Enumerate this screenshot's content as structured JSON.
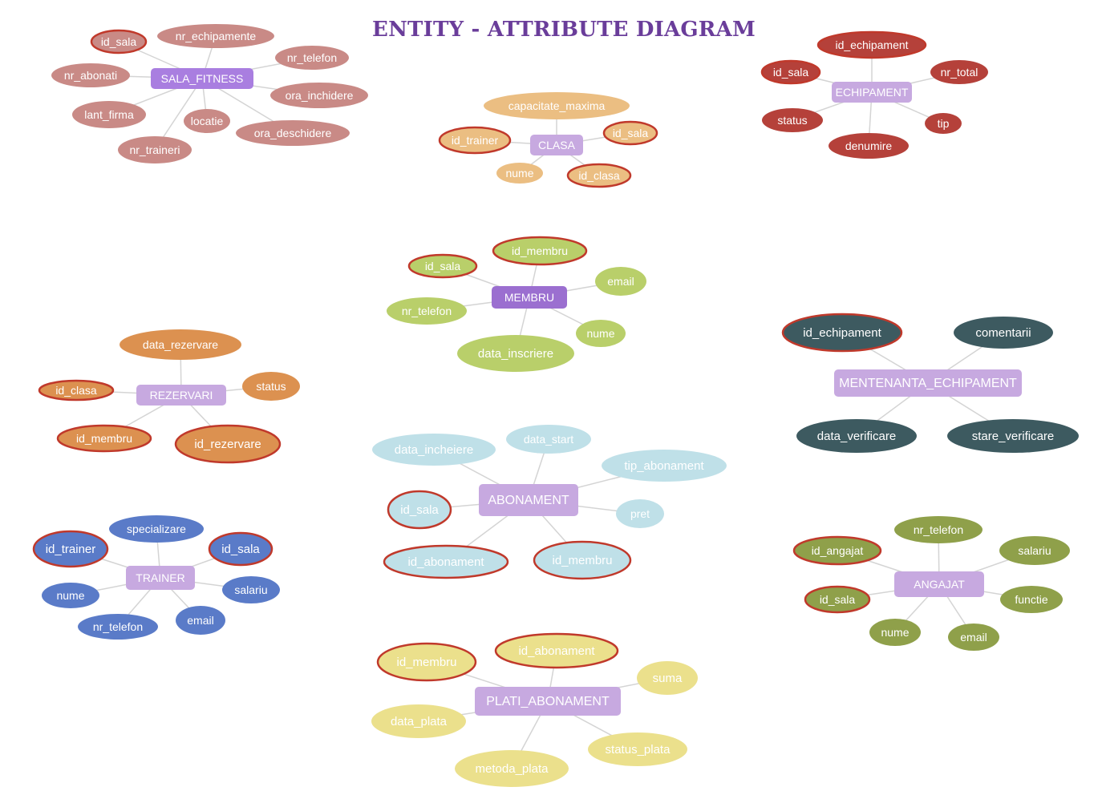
{
  "title": "ENTITY - ATTRIBUTE DIAGRAM",
  "colors": {
    "edge": "#d4d4d4",
    "key_border": "#c0392b",
    "entity_light": "#c7a9e0",
    "entity_dark": "#9b6fd0"
  },
  "entities": [
    {
      "name": "SALA_FITNESS",
      "fill": "#a97ee0",
      "attr_fill": "#c98a86",
      "attr_text": "#ffffff",
      "attributes": [
        {
          "label": "id_sala",
          "key": true
        },
        {
          "label": "nr_echipamente",
          "key": false
        },
        {
          "label": "nr_telefon",
          "key": false
        },
        {
          "label": "nr_abonati",
          "key": false
        },
        {
          "label": "ora_inchidere",
          "key": false
        },
        {
          "label": "lant_firma",
          "key": false
        },
        {
          "label": "locatie",
          "key": false
        },
        {
          "label": "ora_deschidere",
          "key": false
        },
        {
          "label": "nr_traineri",
          "key": false
        }
      ]
    },
    {
      "name": "CLASA",
      "fill": "#c7a9e0",
      "attr_fill": "#ebbe82",
      "attr_text": "#ffffff",
      "attributes": [
        {
          "label": "capacitate_maxima",
          "key": false
        },
        {
          "label": "id_trainer",
          "key": true
        },
        {
          "label": "id_sala",
          "key": true
        },
        {
          "label": "nume",
          "key": false
        },
        {
          "label": "id_clasa",
          "key": true
        }
      ]
    },
    {
      "name": "ECHIPAMENT",
      "fill": "#c7a9e0",
      "attr_fill": "#b5413a",
      "attr_text": "#ffffff",
      "attributes": [
        {
          "label": "id_echipament",
          "key": true
        },
        {
          "label": "id_sala",
          "key": true
        },
        {
          "label": "nr_total",
          "key": false
        },
        {
          "label": "status",
          "key": false
        },
        {
          "label": "tip",
          "key": false
        },
        {
          "label": "denumire",
          "key": false
        }
      ]
    },
    {
      "name": "MEMBRU",
      "fill": "#9b6fd0",
      "attr_fill": "#b9cf6a",
      "attr_text": "#ffffff",
      "attributes": [
        {
          "label": "id_membru",
          "key": true
        },
        {
          "label": "id_sala",
          "key": true
        },
        {
          "label": "email",
          "key": false
        },
        {
          "label": "nr_telefon",
          "key": false
        },
        {
          "label": "nume",
          "key": false
        },
        {
          "label": "data_inscriere",
          "key": false
        }
      ]
    },
    {
      "name": "REZERVARI",
      "fill": "#c7a9e0",
      "attr_fill": "#dc9150",
      "attr_text": "#ffffff",
      "attributes": [
        {
          "label": "data_rezervare",
          "key": false
        },
        {
          "label": "id_clasa",
          "key": true
        },
        {
          "label": "status",
          "key": false
        },
        {
          "label": "id_membru",
          "key": true
        },
        {
          "label": "id_rezervare",
          "key": true
        }
      ]
    },
    {
      "name": "MENTENANTA_ECHIPAMENT",
      "fill": "#c7a9e0",
      "attr_fill": "#3d5a60",
      "attr_text": "#ffffff",
      "attributes": [
        {
          "label": "id_echipament",
          "key": true
        },
        {
          "label": "comentarii",
          "key": false
        },
        {
          "label": "data_verificare",
          "key": false
        },
        {
          "label": "stare_verificare",
          "key": false
        }
      ]
    },
    {
      "name": "ABONAMENT",
      "fill": "#c7a9e0",
      "attr_fill": "#bfe0e8",
      "attr_text": "#ffffff",
      "attributes": [
        {
          "label": "data_incheiere",
          "key": false
        },
        {
          "label": "data_start",
          "key": false
        },
        {
          "label": "tip_abonament",
          "key": false
        },
        {
          "label": "id_sala",
          "key": true
        },
        {
          "label": "pret",
          "key": false
        },
        {
          "label": "id_abonament",
          "key": true
        },
        {
          "label": "id_membru",
          "key": true
        }
      ]
    },
    {
      "name": "TRAINER",
      "fill": "#c7a9e0",
      "attr_fill": "#5a7bc8",
      "attr_text": "#ffffff",
      "attributes": [
        {
          "label": "specializare",
          "key": false
        },
        {
          "label": "id_trainer",
          "key": true
        },
        {
          "label": "id_sala",
          "key": true
        },
        {
          "label": "nume",
          "key": false
        },
        {
          "label": "salariu",
          "key": false
        },
        {
          "label": "nr_telefon",
          "key": false
        },
        {
          "label": "email",
          "key": false
        }
      ]
    },
    {
      "name": "ANGAJAT",
      "fill": "#c7a9e0",
      "attr_fill": "#8fa04a",
      "attr_text": "#ffffff",
      "attributes": [
        {
          "label": "nr_telefon",
          "key": false
        },
        {
          "label": "id_angajat",
          "key": true
        },
        {
          "label": "salariu",
          "key": false
        },
        {
          "label": "id_sala",
          "key": true
        },
        {
          "label": "functie",
          "key": false
        },
        {
          "label": "nume",
          "key": false
        },
        {
          "label": "email",
          "key": false
        }
      ]
    },
    {
      "name": "PLATI_ABONAMENT",
      "fill": "#c7a9e0",
      "attr_fill": "#ebe08c",
      "attr_text": "#ffffff",
      "attributes": [
        {
          "label": "id_membru",
          "key": true
        },
        {
          "label": "id_abonament",
          "key": true
        },
        {
          "label": "suma",
          "key": false
        },
        {
          "label": "data_plata",
          "key": false
        },
        {
          "label": "status_plata",
          "key": false
        },
        {
          "label": "metoda_plata",
          "key": false
        }
      ]
    }
  ]
}
